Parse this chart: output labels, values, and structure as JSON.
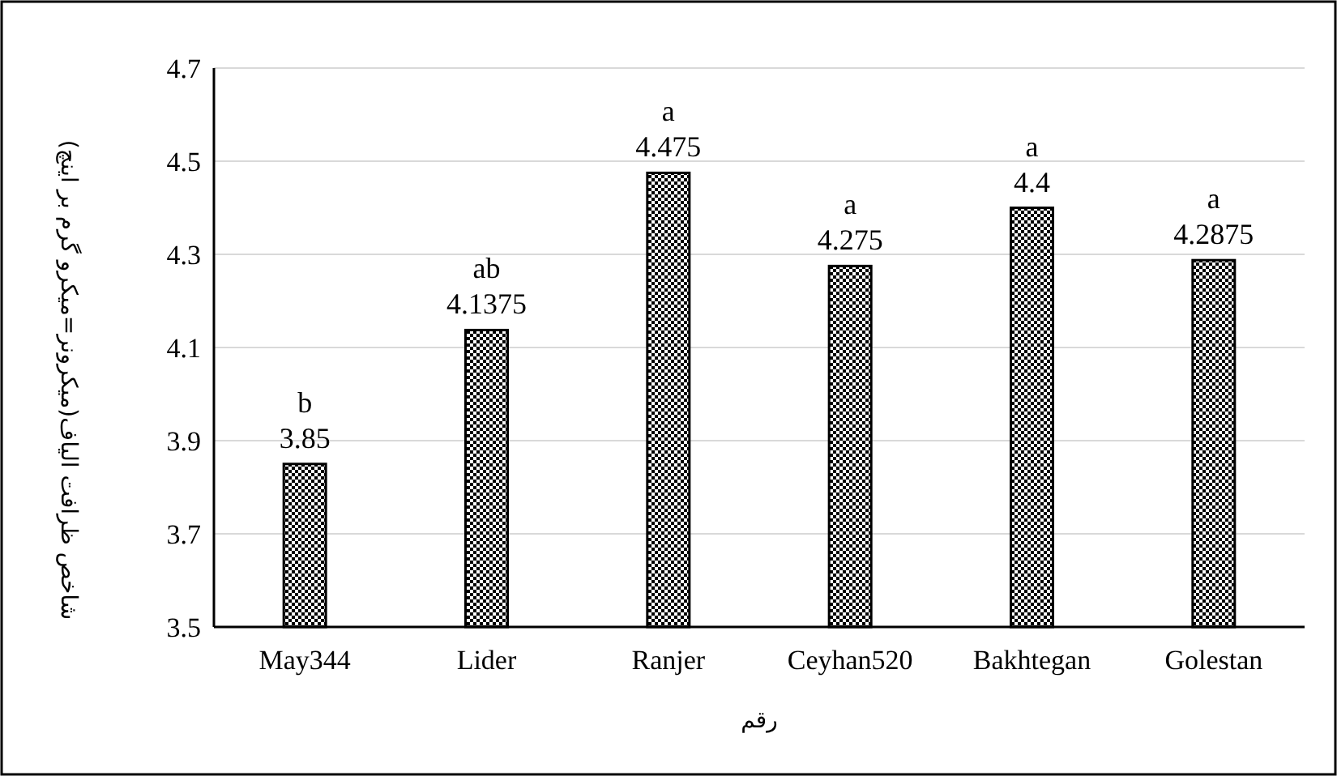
{
  "chart_data": {
    "type": "bar",
    "xlabel": "رقم",
    "ylabel": "شاخص ظرافت الیاف(میکرونر=میکرو گرم بر اینچ)",
    "categories": [
      "May344",
      "Lider",
      "Ranjer",
      "Ceyhan520",
      "Bakhtegan",
      "Golestan"
    ],
    "values": [
      3.85,
      4.1375,
      4.475,
      4.275,
      4.4,
      4.2875
    ],
    "color": "#000000",
    "data_labels": true,
    "annotations": [
      {
        "text": "b",
        "x": "May344",
        "y": 3.85
      },
      {
        "text": "ab",
        "x": "Lider",
        "y": 4.1375
      },
      {
        "text": "a",
        "x": "Ranjer",
        "y": 4.475
      },
      {
        "text": "a",
        "x": "Ceyhan520",
        "y": 4.275
      },
      {
        "text": "a",
        "x": "Bakhtegan",
        "y": 4.4
      },
      {
        "text": "a",
        "x": "Golestan",
        "y": 4.2875
      }
    ],
    "ylim": [
      3.5,
      4.7
    ],
    "yticks": [
      3.5,
      3.7,
      3.9,
      4.1,
      4.3,
      4.5,
      4.7
    ],
    "grid": "y"
  }
}
